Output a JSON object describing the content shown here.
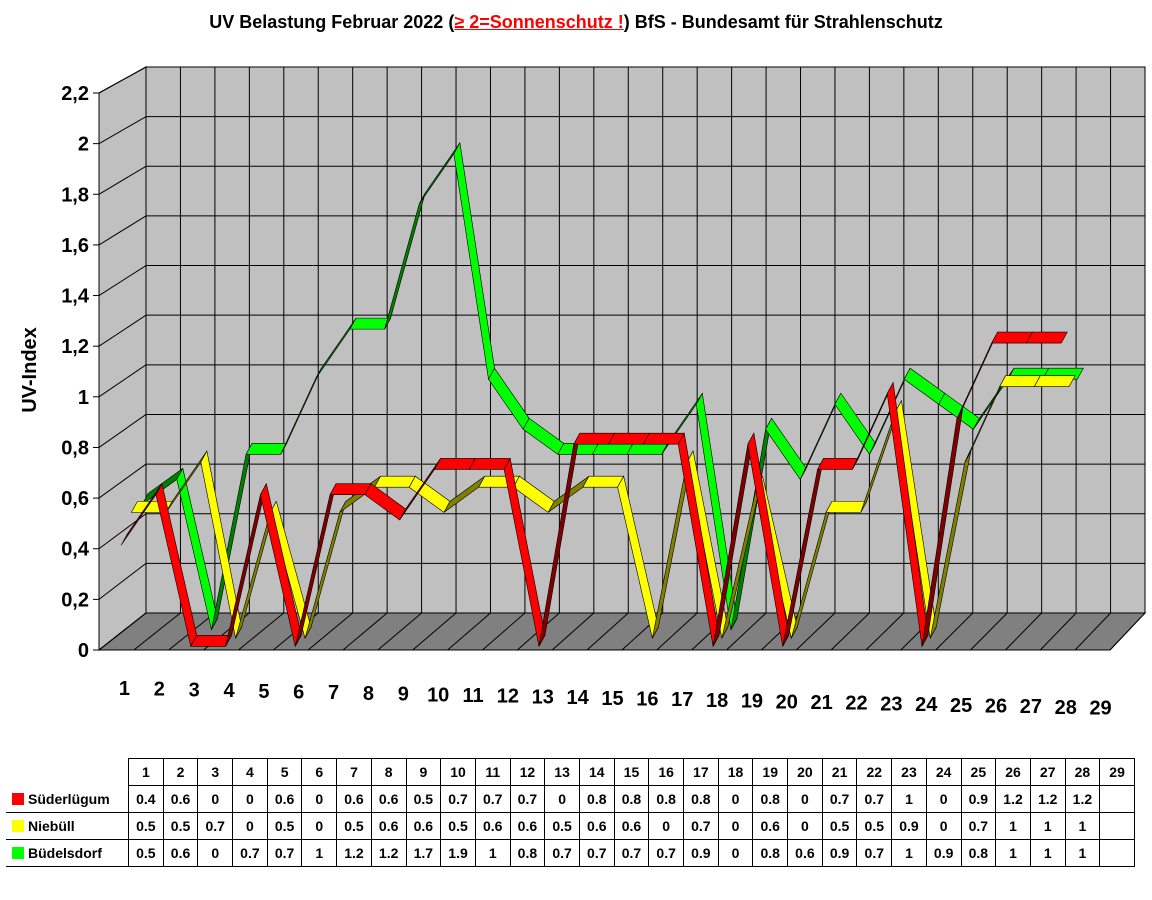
{
  "title": {
    "pre": "UV Belastung Februar 2022 (",
    "red": "≥ 2=Sonnenschutz !",
    "post": ") BfS - Bundesamt für Strahlenschutz"
  },
  "chart_data": {
    "type": "line",
    "title": "UV Belastung Februar 2022 (≥ 2=Sonnenschutz !) BfS - Bundesamt für Strahlenschutz",
    "ylabel": "UV-Index",
    "xlabel": "",
    "ylim": [
      0,
      2.2
    ],
    "yticks": [
      "0",
      "0,2",
      "0,4",
      "0,6",
      "0,8",
      "1",
      "1,2",
      "1,4",
      "1,6",
      "1,8",
      "2",
      "2,2"
    ],
    "categories": [
      "1",
      "2",
      "3",
      "4",
      "5",
      "6",
      "7",
      "8",
      "9",
      "10",
      "11",
      "12",
      "13",
      "14",
      "15",
      "16",
      "17",
      "18",
      "19",
      "20",
      "21",
      "22",
      "23",
      "24",
      "25",
      "26",
      "27",
      "28",
      "29"
    ],
    "grid": true,
    "legend_placement": "table-below",
    "series": [
      {
        "name": "Süderlügum",
        "color": "#ff0000",
        "values": [
          0.4,
          0.6,
          0,
          0,
          0.6,
          0,
          0.6,
          0.6,
          0.5,
          0.7,
          0.7,
          0.7,
          0,
          0.8,
          0.8,
          0.8,
          0.8,
          0,
          0.8,
          0,
          0.7,
          0.7,
          1,
          0,
          0.9,
          1.2,
          1.2,
          1.2,
          null
        ],
        "labels": [
          "0.4",
          "0.6",
          "0",
          "0",
          "0.6",
          "0",
          "0.6",
          "0.6",
          "0.5",
          "0.7",
          "0.7",
          "0.7",
          "0",
          "0.8",
          "0.8",
          "0.8",
          "0.8",
          "0",
          "0.8",
          "0",
          "0.7",
          "0.7",
          "1",
          "0",
          "0.9",
          "1.2",
          "1.2",
          "1.2",
          ""
        ]
      },
      {
        "name": "Niebüll",
        "color": "#ffff00",
        "values": [
          0.5,
          0.5,
          0.7,
          0,
          0.5,
          0,
          0.5,
          0.6,
          0.6,
          0.5,
          0.6,
          0.6,
          0.5,
          0.6,
          0.6,
          0,
          0.7,
          0,
          0.6,
          0,
          0.5,
          0.5,
          0.9,
          0,
          0.7,
          1,
          1,
          1,
          null
        ],
        "labels": [
          "0.5",
          "0.5",
          "0.7",
          "0",
          "0.5",
          "0",
          "0.5",
          "0.6",
          "0.6",
          "0.5",
          "0.6",
          "0.6",
          "0.5",
          "0.6",
          "0.6",
          "0",
          "0.7",
          "0",
          "0.6",
          "0",
          "0.5",
          "0.5",
          "0.9",
          "0",
          "0.7",
          "1",
          "1",
          "1",
          ""
        ]
      },
      {
        "name": "Büdelsdorf",
        "color": "#00ff00",
        "values": [
          0.5,
          0.6,
          0,
          0.7,
          0.7,
          1,
          1.2,
          1.2,
          1.7,
          1.9,
          1,
          0.8,
          0.7,
          0.7,
          0.7,
          0.7,
          0.9,
          0,
          0.8,
          0.6,
          0.9,
          0.7,
          1,
          0.9,
          0.8,
          1,
          1,
          1,
          null
        ],
        "labels": [
          "0.5",
          "0.6",
          "0",
          "0.7",
          "0.7",
          "1",
          "1.2",
          "1.2",
          "1.7",
          "1.9",
          "1",
          "0.8",
          "0.7",
          "0.7",
          "0.7",
          "0.7",
          "0.9",
          "0",
          "0.8",
          "0.6",
          "0.9",
          "0.7",
          "1",
          "0.9",
          "0.8",
          "1",
          "1",
          "1",
          ""
        ]
      }
    ]
  }
}
